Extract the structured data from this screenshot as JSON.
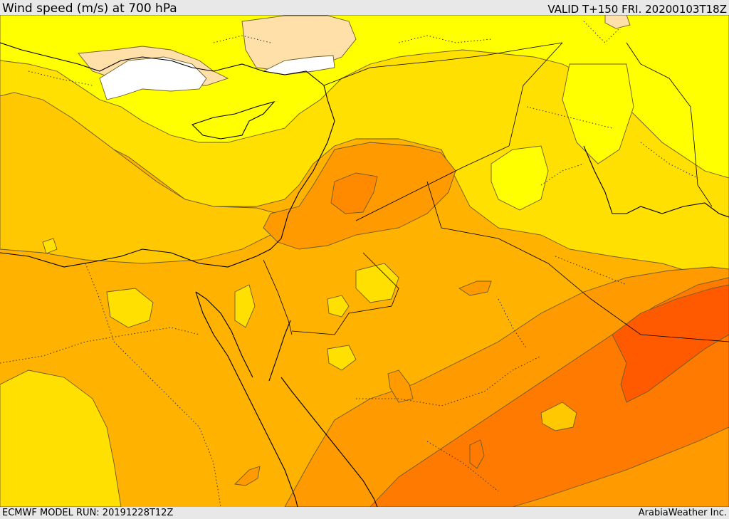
{
  "header": {
    "title_left": "Wind speed (m/s) at 700 hPa",
    "title_right": "VALID T+150 FRI. 20200103T18Z"
  },
  "footer": {
    "model_run": "ECMWF MODEL RUN: 20191228T12Z",
    "credit": "ArabiaWeather Inc."
  },
  "map": {
    "variable": "wind speed",
    "level": "700 hPa",
    "colors": {
      "band_white": "#ffffff",
      "band_peach": "#ffe0a8",
      "band_lightyellow": "#ffff00",
      "band_yellow": "#ffe000",
      "band_goldenyellow": "#ffc800",
      "band_amber": "#ffb000",
      "band_orange": "#ff9400",
      "band_darkorange": "#ff7a00",
      "band_redorange": "#ff5a00"
    }
  }
}
